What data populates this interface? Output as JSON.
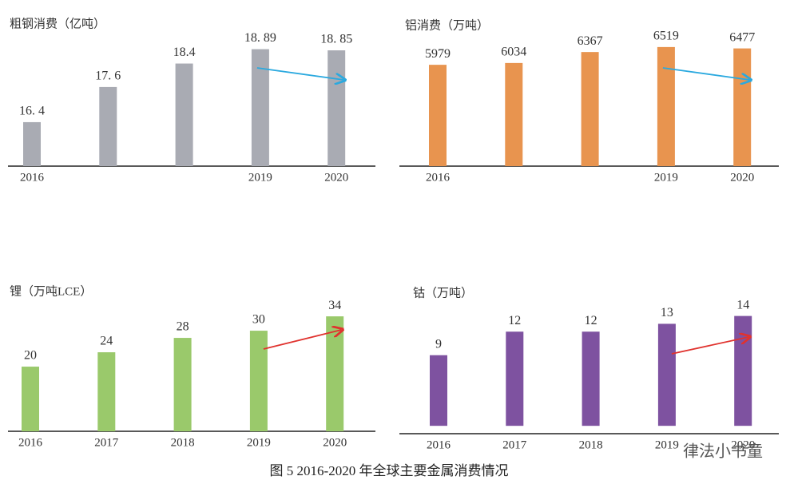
{
  "caption": "图 5 2016-2020 年全球主要金属消费情况",
  "watermark": "律法小书童",
  "chart_data": [
    {
      "type": "bar",
      "title": "粗钢消费（亿吨）",
      "categories": [
        "2016",
        null,
        null,
        "2019",
        "2020"
      ],
      "values": [
        16.4,
        17.6,
        18.4,
        18.89,
        18.85
      ],
      "value_labels": [
        "16. 4",
        "17. 6",
        "18.4",
        "18. 89",
        "18. 85"
      ],
      "color": "#a9abb3",
      "ylim": [
        14.9,
        19.75
      ],
      "arrow_color": "#2aa9df"
    },
    {
      "type": "bar",
      "title": "铝消费（万吨）",
      "categories": [
        "2016",
        null,
        null,
        "2019",
        "2020"
      ],
      "values": [
        5979,
        6034,
        6367,
        6519,
        6477
      ],
      "color": "#e8944f",
      "ylim": [
        2900,
        7220
      ],
      "arrow_color": "#2aa9df"
    },
    {
      "type": "bar",
      "title": "锂（万吨LCE）",
      "categories": [
        "2016",
        "2017",
        "2018",
        "2019",
        "2020"
      ],
      "values": [
        20,
        24,
        28,
        30,
        34
      ],
      "color": "#9ac96b",
      "ylim": [
        2,
        39.8
      ],
      "arrow_color": "#e0322e"
    },
    {
      "type": "bar",
      "title": "钴（万吨）",
      "categories": [
        "2016",
        "2017",
        "2018",
        "2019",
        "2020"
      ],
      "values": [
        9,
        12,
        12,
        13,
        14
      ],
      "color": "#7e52a0",
      "ylim": [
        -1,
        16.3
      ],
      "arrow_color": "#e0322e"
    }
  ]
}
